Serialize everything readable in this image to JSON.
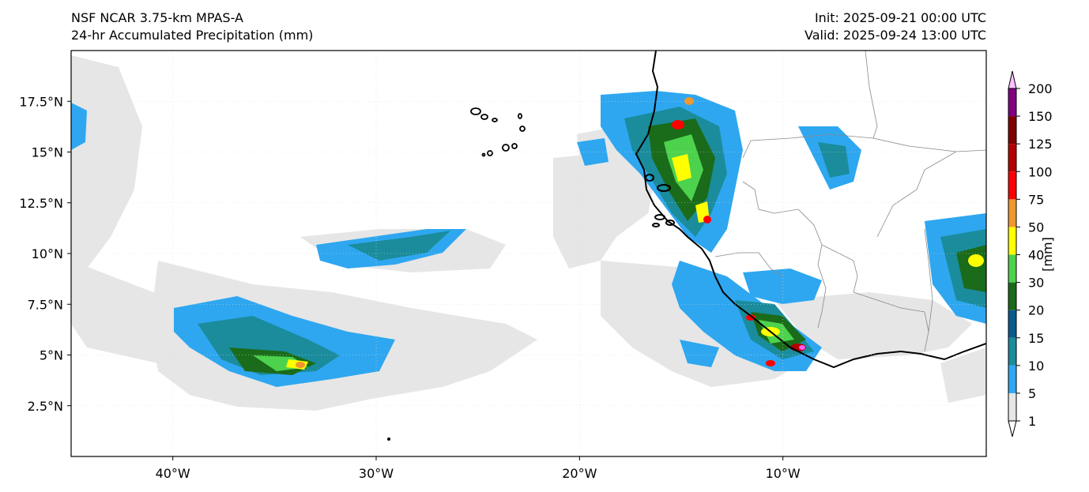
{
  "title": {
    "line1": "NSF NCAR 3.75-km MPAS-A",
    "line2": "24-hr Accumulated Precipitation (mm)",
    "init": "Init: 2025-09-21 00:00 UTC",
    "valid": "Valid: 2025-09-24 13:00 UTC"
  },
  "map": {
    "lon_range": [
      -45,
      0
    ],
    "lat_range": [
      0,
      20
    ],
    "lat_ticks": [
      {
        "value": 17.5,
        "label": "17.5°N"
      },
      {
        "value": 15,
        "label": "15°N"
      },
      {
        "value": 12.5,
        "label": "12.5°N"
      },
      {
        "value": 10,
        "label": "10°N"
      },
      {
        "value": 7.5,
        "label": "7.5°N"
      },
      {
        "value": 5,
        "label": "5°N"
      },
      {
        "value": 2.5,
        "label": "2.5°N"
      }
    ],
    "lon_ticks": [
      {
        "value": -40,
        "label": "40°W"
      },
      {
        "value": -30,
        "label": "30°W"
      },
      {
        "value": -20,
        "label": "20°W"
      },
      {
        "value": -10,
        "label": "10°W"
      }
    ]
  },
  "colorbar": {
    "unit": "[mm]",
    "levels": [
      "1",
      "5",
      "10",
      "15",
      "20",
      "30",
      "40",
      "50",
      "75",
      "100",
      "125",
      "150",
      "200"
    ],
    "colors": [
      "#e6e6e6",
      "#2ea7f0",
      "#1a8c9c",
      "#0a5a8c",
      "#1a6b1a",
      "#4dd24d",
      "#ffff00",
      "#f0962e",
      "#ff0000",
      "#b40000",
      "#800000",
      "#800080",
      "#ff55ff"
    ],
    "under_color": "#ffffff",
    "over_color": "#ffc0ff"
  }
}
